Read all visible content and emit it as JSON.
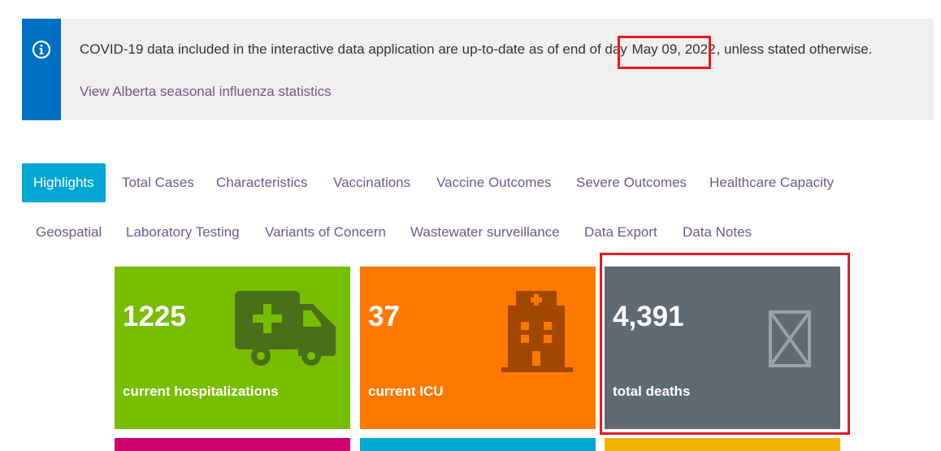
{
  "notice": {
    "text_before": "COVID-19 data included in the interactive data application are up-to-date as of end of day ",
    "date": "May 09, 2022",
    "text_after": ", unless stated otherwise.",
    "link": "View Alberta seasonal influenza statistics",
    "icon": "info-icon"
  },
  "tabs": {
    "row1": [
      "Highlights",
      "Total Cases",
      "Characteristics",
      "Vaccinations",
      "Vaccine Outcomes",
      "Severe Outcomes",
      "Healthcare Capacity"
    ],
    "row2": [
      "Geospatial",
      "Laboratory Testing",
      "Variants of Concern",
      "Wastewater surveillance",
      "Data Export",
      "Data Notes"
    ],
    "active": "Highlights"
  },
  "cards": [
    {
      "value": "1225",
      "label": "current hospitalizations",
      "icon": "ambulance-icon",
      "color": "#78be00"
    },
    {
      "value": "37",
      "label": "current ICU",
      "icon": "hospital-icon",
      "color": "#ff7900"
    },
    {
      "value": "4,391",
      "label": "total deaths",
      "icon": "missing-glyph-icon",
      "color": "#606a73"
    }
  ],
  "strip_colors": [
    "#d0006f",
    "#00a7d5",
    "#f0b400"
  ],
  "annotation_color": "#e41b23"
}
